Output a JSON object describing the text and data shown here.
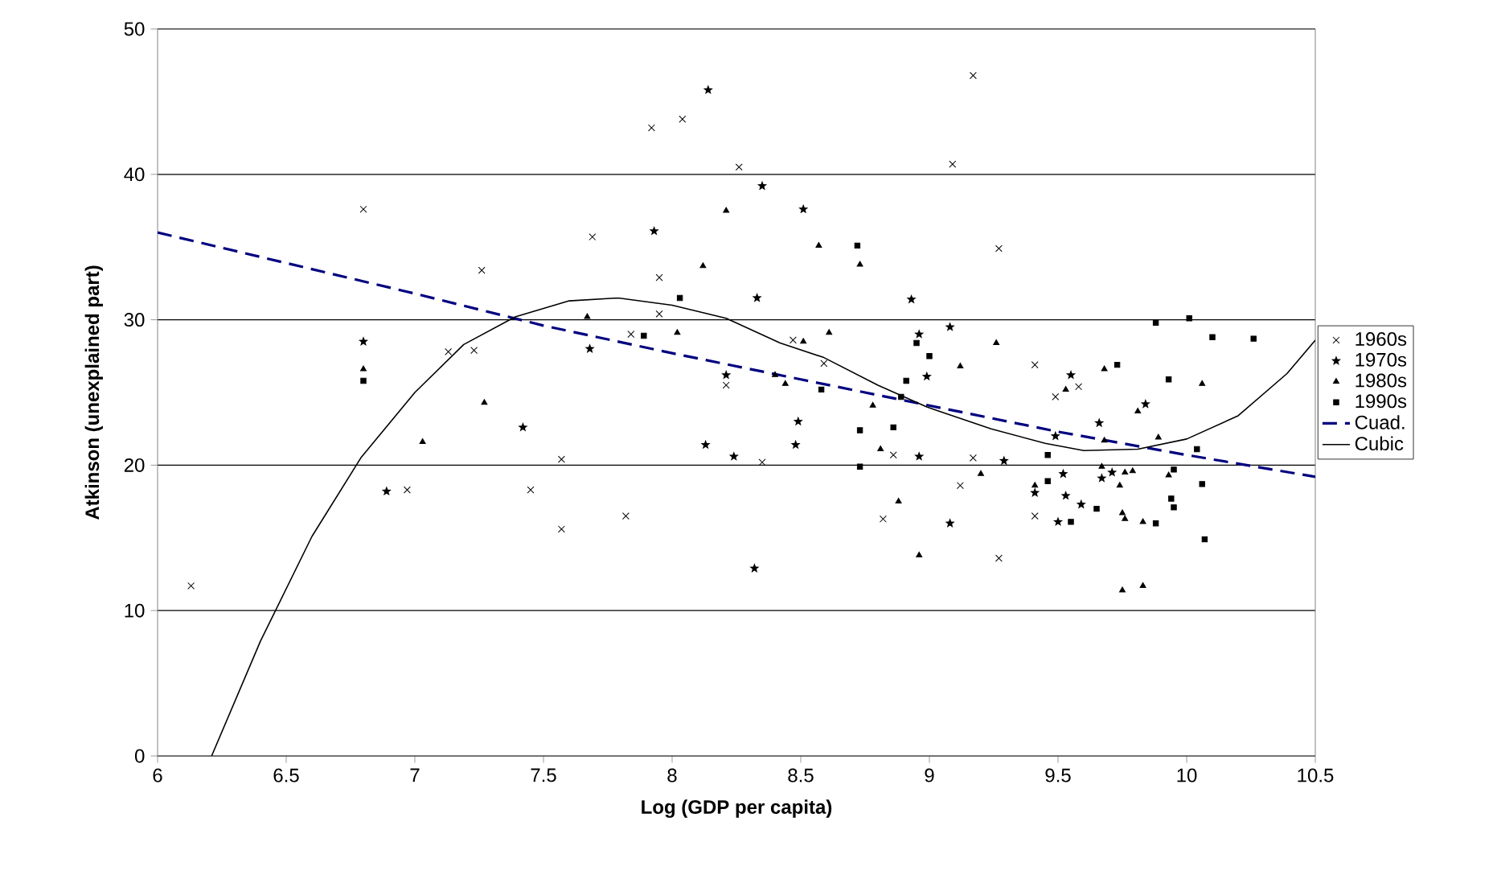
{
  "chart_data": {
    "type": "scatter",
    "xlabel": "Log (GDP per capita)",
    "ylabel": "Atkinson (unexplained part)",
    "xlim": [
      6,
      10.5
    ],
    "ylim": [
      0,
      50
    ],
    "xticks": [
      6,
      6.5,
      7,
      7.5,
      8,
      8.5,
      9,
      9.5,
      10,
      10.5
    ],
    "yticks": [
      0,
      10,
      20,
      30,
      40,
      50
    ],
    "grid": "y",
    "legend": "right",
    "series": [
      {
        "name": "1960s",
        "marker": "cross",
        "color": "#000000",
        "x": [
          6.13,
          6.8,
          7.26,
          7.13,
          7.23,
          7.57,
          6.97,
          7.45,
          7.57,
          7.92,
          8.04,
          8.26,
          7.69,
          7.95,
          7.95,
          7.84,
          8.47,
          8.59,
          8.21,
          8.86,
          8.35,
          7.82,
          8.82,
          9.17,
          9.09,
          9.27,
          9.41,
          9.58,
          9.49,
          9.17,
          9.12,
          9.41,
          9.27
        ],
        "values": [
          11.7,
          37.6,
          33.4,
          27.8,
          27.9,
          20.4,
          18.3,
          18.3,
          15.6,
          43.2,
          43.8,
          40.5,
          35.7,
          32.9,
          30.4,
          29.0,
          28.6,
          27.0,
          25.5,
          20.7,
          20.2,
          16.5,
          16.3,
          46.8,
          40.7,
          34.9,
          26.9,
          25.4,
          24.7,
          20.5,
          18.6,
          16.5,
          13.6
        ]
      },
      {
        "name": "1970s",
        "marker": "star",
        "color": "#000000",
        "x": [
          6.8,
          7.42,
          6.89,
          8.14,
          8.35,
          8.51,
          7.93,
          8.33,
          8.93,
          7.68,
          8.96,
          8.21,
          8.99,
          8.49,
          8.13,
          8.48,
          8.24,
          8.96,
          9.08,
          8.32,
          9.08,
          9.55,
          9.84,
          9.66,
          9.49,
          9.29,
          9.52,
          9.67,
          9.71,
          9.41,
          9.53,
          9.59,
          9.5
        ],
        "values": [
          28.5,
          22.6,
          18.2,
          45.8,
          39.2,
          37.6,
          36.1,
          31.5,
          31.4,
          28.0,
          29.0,
          26.2,
          26.1,
          23.0,
          21.4,
          21.4,
          20.6,
          20.6,
          16.0,
          12.9,
          29.5,
          26.2,
          24.2,
          22.9,
          22.0,
          20.3,
          19.4,
          19.1,
          19.5,
          18.1,
          17.9,
          17.3,
          16.1
        ]
      },
      {
        "name": "1980s",
        "marker": "triangle",
        "color": "#000000",
        "x": [
          6.8,
          7.27,
          7.03,
          8.21,
          8.57,
          8.73,
          8.12,
          7.67,
          8.02,
          8.61,
          8.51,
          8.4,
          8.44,
          8.78,
          8.81,
          8.88,
          8.96,
          9.26,
          9.12,
          9.53,
          9.68,
          10.06,
          9.81,
          9.68,
          9.89,
          9.2,
          9.67,
          9.76,
          9.79,
          9.74,
          9.93,
          9.41,
          9.75,
          9.76,
          9.83,
          9.75,
          9.83
        ],
        "values": [
          26.6,
          24.3,
          21.6,
          37.5,
          35.1,
          33.8,
          33.7,
          30.2,
          29.1,
          29.1,
          28.5,
          26.2,
          25.6,
          24.1,
          21.1,
          17.5,
          13.8,
          28.4,
          26.8,
          25.2,
          26.6,
          25.6,
          23.7,
          21.7,
          21.9,
          19.4,
          19.9,
          19.5,
          19.6,
          18.6,
          19.3,
          18.6,
          16.7,
          16.3,
          16.1,
          11.4,
          11.7
        ]
      },
      {
        "name": "1990s",
        "marker": "square",
        "color": "#000000",
        "x": [
          6.8,
          8.72,
          8.03,
          7.89,
          8.95,
          9.0,
          8.58,
          8.91,
          8.89,
          8.73,
          8.86,
          8.73,
          9.73,
          9.88,
          10.01,
          10.1,
          10.26,
          9.93,
          9.46,
          10.04,
          9.95,
          10.06,
          9.46,
          9.55,
          9.65,
          9.88,
          9.94,
          9.95,
          10.07
        ],
        "values": [
          25.8,
          35.1,
          31.5,
          28.9,
          28.4,
          27.5,
          25.2,
          25.8,
          24.7,
          22.4,
          22.6,
          19.9,
          26.9,
          29.8,
          30.1,
          28.8,
          28.7,
          25.9,
          20.7,
          21.1,
          19.7,
          18.7,
          18.9,
          16.1,
          17.0,
          16.0,
          17.7,
          17.1,
          14.9
        ]
      },
      {
        "name": "Cuad.",
        "type": "line",
        "marker": "none",
        "line_style": "dashed",
        "color": "#000080",
        "x": [
          6,
          6.5,
          7,
          7.5,
          8,
          8.5,
          9,
          9.5,
          10,
          10.5
        ],
        "values": [
          36.0,
          33.9,
          31.8,
          29.6,
          27.7,
          25.9,
          24.1,
          22.3,
          20.7,
          19.2
        ]
      },
      {
        "name": "Cubic",
        "type": "line",
        "marker": "none",
        "line_style": "solid",
        "color": "#000000",
        "x": [
          6.21,
          6.4,
          6.6,
          6.79,
          7.0,
          7.19,
          7.39,
          7.6,
          7.79,
          8.0,
          8.21,
          8.42,
          8.59,
          8.8,
          8.99,
          9.09,
          9.24,
          9.45,
          9.6,
          9.81,
          10.0,
          10.2,
          10.39,
          10.5
        ],
        "values": [
          0,
          7.9,
          15.1,
          20.5,
          25.0,
          28.3,
          30.2,
          31.3,
          31.5,
          31.0,
          30.1,
          28.4,
          27.4,
          25.5,
          24.0,
          23.4,
          22.5,
          21.5,
          21.0,
          21.1,
          21.8,
          23.4,
          26.3,
          28.6
        ]
      }
    ]
  }
}
